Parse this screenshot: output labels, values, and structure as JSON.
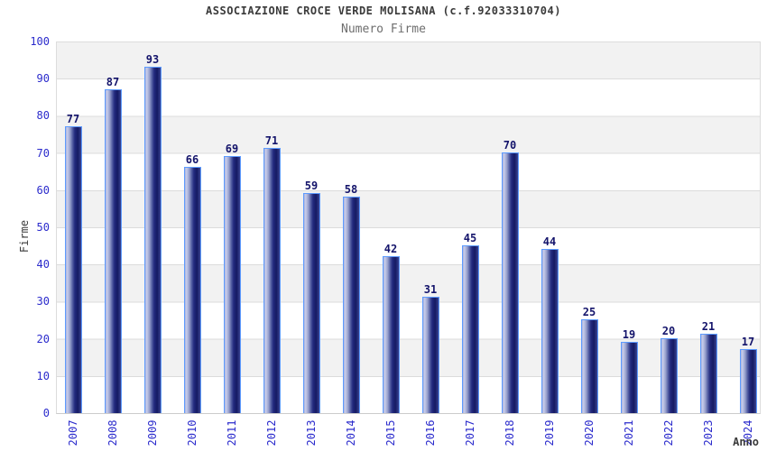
{
  "chart_data": {
    "type": "bar",
    "title": "ASSOCIAZIONE CROCE VERDE MOLISANA (c.f.92033310704)",
    "subtitle": "Numero Firme",
    "xlabel": "Anno",
    "ylabel": "Firme",
    "categories": [
      "2007",
      "2008",
      "2009",
      "2010",
      "2011",
      "2012",
      "2013",
      "2014",
      "2015",
      "2016",
      "2017",
      "2018",
      "2019",
      "2020",
      "2021",
      "2022",
      "2023",
      "2024"
    ],
    "values": [
      77,
      87,
      93,
      66,
      69,
      71,
      59,
      58,
      42,
      31,
      45,
      70,
      44,
      25,
      19,
      20,
      21,
      17
    ],
    "ylim": [
      0,
      100
    ],
    "ytick_step": 10,
    "grid": true,
    "legend_position": "none",
    "layout_hints": "horizontal alternating gray/white bands every 10 units, gray topmost; value label above each bar; x tick labels rotated 90deg",
    "colors": {
      "tick_label": "#2b2bcc",
      "value_label": "#14146b",
      "title": "#3a3a3a",
      "subtitle": "#6e6e6e",
      "band_gray": "#f2f2f2",
      "grid_line": "#dcdcdc",
      "bar_border": "#5d9bff",
      "bar_dark": "#151a63",
      "bar_light": "#aab2dc"
    }
  }
}
